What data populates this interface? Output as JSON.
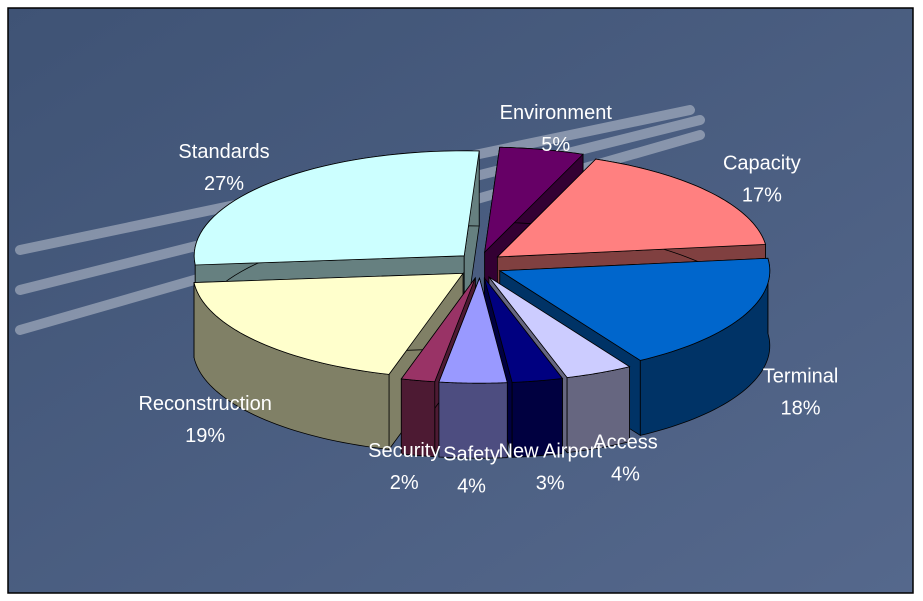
{
  "chart_data": {
    "type": "pie3d",
    "categories": [
      "Standards",
      "Environment",
      "Capacity",
      "Terminal",
      "Access",
      "New Airport",
      "Safety",
      "Security",
      "Reconstruction"
    ],
    "values": [
      27,
      5,
      17,
      18,
      4,
      3,
      4,
      2,
      19
    ],
    "value_labels": [
      "27%",
      "5%",
      "17%",
      "18%",
      "4%",
      "3%",
      "4%",
      "2%",
      "19%"
    ],
    "colors": [
      "#ccffff",
      "#660066",
      "#ff8080",
      "#0066cc",
      "#ccccff",
      "#000080",
      "#9999ff",
      "#993366",
      "#ffffcc"
    ]
  }
}
